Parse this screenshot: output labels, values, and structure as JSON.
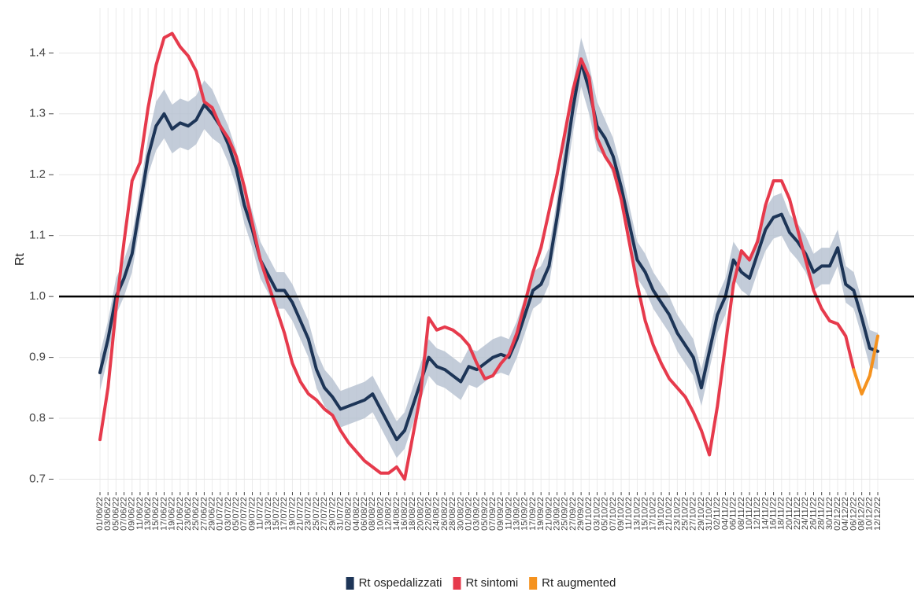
{
  "chart_data": {
    "type": "line",
    "ylabel": "Rt",
    "categories": [
      "01/06/22",
      "03/06/22",
      "05/06/22",
      "07/06/22",
      "09/06/22",
      "11/06/22",
      "13/06/22",
      "15/06/22",
      "17/06/22",
      "19/06/22",
      "21/06/22",
      "23/06/22",
      "25/06/22",
      "27/06/22",
      "29/06/22",
      "01/07/22",
      "03/07/22",
      "05/07/22",
      "07/07/22",
      "09/07/22",
      "11/07/22",
      "13/07/22",
      "15/07/22",
      "17/07/22",
      "19/07/22",
      "21/07/22",
      "23/07/22",
      "25/07/22",
      "27/07/22",
      "29/07/22",
      "31/07/22",
      "02/08/22",
      "04/08/22",
      "06/08/22",
      "08/08/22",
      "10/08/22",
      "12/08/22",
      "14/08/22",
      "16/08/22",
      "18/08/22",
      "20/08/22",
      "22/08/22",
      "24/08/22",
      "26/08/22",
      "28/08/22",
      "30/08/22",
      "01/09/22",
      "03/09/22",
      "05/09/22",
      "07/09/22",
      "09/09/22",
      "11/09/22",
      "13/09/22",
      "15/09/22",
      "17/09/22",
      "19/09/22",
      "21/09/22",
      "23/09/22",
      "25/09/22",
      "27/09/22",
      "29/09/22",
      "01/10/22",
      "03/10/22",
      "05/10/22",
      "07/10/22",
      "09/10/22",
      "11/10/22",
      "13/10/22",
      "15/10/22",
      "17/10/22",
      "19/10/22",
      "21/10/22",
      "23/10/22",
      "25/10/22",
      "27/10/22",
      "29/10/22",
      "31/10/22",
      "02/11/22",
      "04/11/22",
      "06/11/22",
      "08/11/22",
      "10/11/22",
      "12/11/22",
      "14/11/22",
      "16/11/22",
      "18/11/22",
      "20/11/22",
      "22/11/22",
      "24/11/22",
      "26/11/22",
      "28/11/22",
      "30/11/22",
      "02/12/22",
      "04/12/22",
      "06/12/22",
      "08/12/22",
      "10/12/22",
      "12/12/22"
    ],
    "series": [
      {
        "name": "Rt ospedalizzati",
        "color": "#1d3557",
        "band_color": "#b4bfd0",
        "values": [
          0.875,
          0.93,
          1.0,
          1.03,
          1.07,
          1.15,
          1.23,
          1.28,
          1.3,
          1.275,
          1.285,
          1.28,
          1.29,
          1.315,
          1.3,
          1.28,
          1.25,
          1.21,
          1.15,
          1.11,
          1.06,
          1.035,
          1.01,
          1.01,
          0.99,
          0.96,
          0.93,
          0.88,
          0.85,
          0.835,
          0.815,
          0.82,
          0.825,
          0.83,
          0.84,
          0.815,
          0.79,
          0.765,
          0.78,
          0.82,
          0.86,
          0.9,
          0.885,
          0.88,
          0.87,
          0.86,
          0.885,
          0.88,
          0.89,
          0.9,
          0.905,
          0.9,
          0.93,
          0.97,
          1.01,
          1.02,
          1.05,
          1.13,
          1.22,
          1.31,
          1.385,
          1.34,
          1.28,
          1.26,
          1.23,
          1.18,
          1.12,
          1.06,
          1.04,
          1.01,
          0.99,
          0.97,
          0.94,
          0.92,
          0.9,
          0.85,
          0.91,
          0.97,
          1.0,
          1.06,
          1.04,
          1.03,
          1.07,
          1.11,
          1.13,
          1.135,
          1.105,
          1.09,
          1.07,
          1.04,
          1.05,
          1.05,
          1.08,
          1.02,
          1.01,
          0.965,
          0.915,
          0.91
        ],
        "lower": [
          0.845,
          0.9,
          0.97,
          1.0,
          1.04,
          1.12,
          1.2,
          1.24,
          1.26,
          1.235,
          1.245,
          1.24,
          1.25,
          1.275,
          1.26,
          1.25,
          1.22,
          1.18,
          1.12,
          1.08,
          1.03,
          1.005,
          0.98,
          0.98,
          0.96,
          0.93,
          0.9,
          0.85,
          0.82,
          0.805,
          0.785,
          0.79,
          0.795,
          0.8,
          0.81,
          0.785,
          0.76,
          0.735,
          0.75,
          0.79,
          0.83,
          0.87,
          0.855,
          0.85,
          0.84,
          0.83,
          0.855,
          0.85,
          0.86,
          0.87,
          0.875,
          0.87,
          0.9,
          0.94,
          0.98,
          0.99,
          1.02,
          1.1,
          1.18,
          1.27,
          1.345,
          1.3,
          1.24,
          1.23,
          1.2,
          1.15,
          1.09,
          1.03,
          1.01,
          0.98,
          0.96,
          0.94,
          0.91,
          0.89,
          0.87,
          0.82,
          0.88,
          0.94,
          0.97,
          1.03,
          1.01,
          1.0,
          1.04,
          1.075,
          1.095,
          1.1,
          1.075,
          1.06,
          1.04,
          1.01,
          1.02,
          1.02,
          1.05,
          0.99,
          0.98,
          0.935,
          0.885,
          0.88
        ],
        "upper": [
          0.905,
          0.96,
          1.03,
          1.06,
          1.1,
          1.18,
          1.26,
          1.32,
          1.34,
          1.315,
          1.325,
          1.32,
          1.33,
          1.355,
          1.34,
          1.31,
          1.28,
          1.24,
          1.18,
          1.14,
          1.09,
          1.065,
          1.04,
          1.04,
          1.02,
          0.99,
          0.96,
          0.91,
          0.88,
          0.865,
          0.845,
          0.85,
          0.855,
          0.86,
          0.87,
          0.845,
          0.82,
          0.795,
          0.81,
          0.85,
          0.89,
          0.93,
          0.915,
          0.91,
          0.9,
          0.89,
          0.915,
          0.91,
          0.92,
          0.93,
          0.935,
          0.93,
          0.96,
          1.0,
          1.04,
          1.05,
          1.08,
          1.16,
          1.26,
          1.35,
          1.425,
          1.38,
          1.32,
          1.29,
          1.26,
          1.21,
          1.15,
          1.09,
          1.07,
          1.04,
          1.02,
          1.0,
          0.97,
          0.95,
          0.93,
          0.88,
          0.94,
          1.0,
          1.03,
          1.09,
          1.07,
          1.06,
          1.1,
          1.145,
          1.165,
          1.17,
          1.135,
          1.12,
          1.1,
          1.07,
          1.08,
          1.08,
          1.11,
          1.05,
          1.04,
          0.995,
          0.945,
          0.94
        ]
      },
      {
        "name": "Rt sintomi",
        "color": "#e63a4c",
        "values": [
          0.765,
          0.85,
          0.98,
          1.09,
          1.19,
          1.22,
          1.31,
          1.38,
          1.425,
          1.432,
          1.41,
          1.395,
          1.37,
          1.32,
          1.31,
          1.28,
          1.26,
          1.23,
          1.18,
          1.12,
          1.06,
          1.02,
          0.98,
          0.94,
          0.89,
          0.86,
          0.84,
          0.83,
          0.815,
          0.805,
          0.78,
          0.76,
          0.745,
          0.73,
          0.72,
          0.71,
          0.71,
          0.72,
          0.7,
          0.77,
          0.84,
          0.965,
          0.945,
          0.95,
          0.945,
          0.935,
          0.92,
          0.89,
          0.865,
          0.87,
          0.89,
          0.905,
          0.94,
          0.99,
          1.04,
          1.08,
          1.14,
          1.2,
          1.27,
          1.34,
          1.39,
          1.36,
          1.26,
          1.23,
          1.21,
          1.16,
          1.09,
          1.02,
          0.96,
          0.92,
          0.89,
          0.865,
          0.85,
          0.835,
          0.81,
          0.78,
          0.74,
          0.82,
          0.92,
          1.02,
          1.075,
          1.06,
          1.09,
          1.15,
          1.19,
          1.19,
          1.16,
          1.11,
          1.06,
          1.01,
          0.98,
          0.96,
          0.955,
          0.935,
          0.88,
          null,
          null,
          null
        ]
      },
      {
        "name": "Rt augmented",
        "color": "#f5921e",
        "values": [
          null,
          null,
          null,
          null,
          null,
          null,
          null,
          null,
          null,
          null,
          null,
          null,
          null,
          null,
          null,
          null,
          null,
          null,
          null,
          null,
          null,
          null,
          null,
          null,
          null,
          null,
          null,
          null,
          null,
          null,
          null,
          null,
          null,
          null,
          null,
          null,
          null,
          null,
          null,
          null,
          null,
          null,
          null,
          null,
          null,
          null,
          null,
          null,
          null,
          null,
          null,
          null,
          null,
          null,
          null,
          null,
          null,
          null,
          null,
          null,
          null,
          null,
          null,
          null,
          null,
          null,
          null,
          null,
          null,
          null,
          null,
          null,
          null,
          null,
          null,
          null,
          null,
          null,
          null,
          null,
          null,
          null,
          null,
          null,
          null,
          null,
          null,
          null,
          null,
          null,
          null,
          null,
          null,
          null,
          0.88,
          0.84,
          0.87,
          0.935
        ]
      }
    ],
    "hline": 1,
    "ylim": [
      0.68,
      1.474
    ],
    "yticks": [
      0.7,
      0.8,
      0.9,
      {
        "value": 1,
        "label": "1.0"
      },
      1.1,
      1.2,
      1.3,
      1.4
    ],
    "grid": true,
    "legend": "bottom"
  }
}
